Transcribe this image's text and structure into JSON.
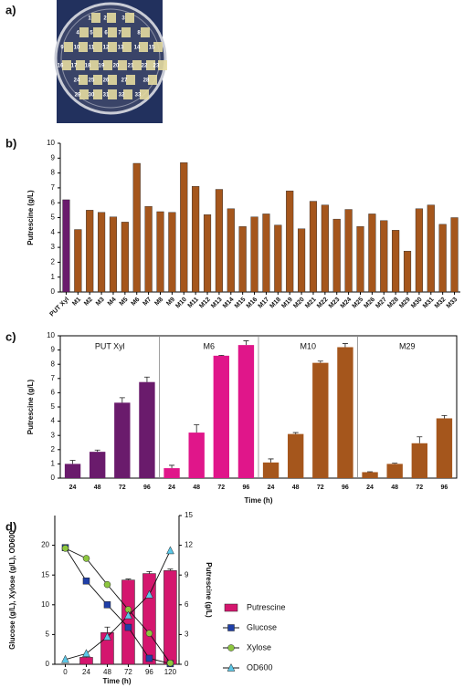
{
  "panel_labels": [
    "a)",
    "b)",
    "c)",
    "d)"
  ],
  "photo": {
    "labels": [
      "1",
      "2",
      "3",
      "4",
      "5",
      "6",
      "7",
      "8",
      "9",
      "10",
      "11",
      "12",
      "13",
      "14",
      "15",
      "16",
      "17",
      "18",
      "19",
      "20",
      "21",
      "22",
      "23",
      "24",
      "25",
      "26",
      "27",
      "28",
      "29",
      "30",
      "31",
      "32",
      "33"
    ]
  },
  "chart_data": [
    {
      "type": "bar",
      "ylabel": "Putrescine (g/L)",
      "categories": [
        "PUT Xyl",
        "M1",
        "M2",
        "M3",
        "M4",
        "M5",
        "M6",
        "M7",
        "M8",
        "M9",
        "M10",
        "M11",
        "M12",
        "M13",
        "M14",
        "M15",
        "M16",
        "M17",
        "M18",
        "M19",
        "M20",
        "M21",
        "M22",
        "M23",
        "M24",
        "M25",
        "M26",
        "M27",
        "M28",
        "M29",
        "M30",
        "M31",
        "M32",
        "M33"
      ],
      "values": [
        6.2,
        4.2,
        5.5,
        5.35,
        5.05,
        4.7,
        8.65,
        5.75,
        5.4,
        5.35,
        8.7,
        7.1,
        5.2,
        6.9,
        5.6,
        4.4,
        5.05,
        5.25,
        4.5,
        6.8,
        4.25,
        6.1,
        5.85,
        4.9,
        5.55,
        4.4,
        5.25,
        4.8,
        4.15,
        2.75,
        5.6,
        5.85,
        4.55,
        5.0
      ],
      "colors": [
        "#6a1b6c",
        "#a5561c",
        "#a5561c",
        "#a5561c",
        "#a5561c",
        "#a5561c",
        "#a5561c",
        "#a5561c",
        "#a5561c",
        "#a5561c",
        "#a5561c",
        "#a5561c",
        "#a5561c",
        "#a5561c",
        "#a5561c",
        "#a5561c",
        "#a5561c",
        "#a5561c",
        "#a5561c",
        "#a5561c",
        "#a5561c",
        "#a5561c",
        "#a5561c",
        "#a5561c",
        "#a5561c",
        "#a5561c",
        "#a5561c",
        "#a5561c",
        "#a5561c",
        "#a5561c",
        "#a5561c",
        "#a5561c",
        "#a5561c",
        "#a5561c"
      ],
      "ylim": [
        0,
        10
      ],
      "yticks": [
        0,
        1,
        2,
        3,
        4,
        5,
        6,
        7,
        8,
        9,
        10
      ]
    },
    {
      "type": "faceted_bar",
      "ylabel": "Putrescine (g/L)",
      "xlabel": "Time (h)",
      "groups": [
        {
          "name": "PUT Xyl",
          "color": "#6a1b6c",
          "categories": [
            "24",
            "48",
            "72",
            "96"
          ],
          "values": [
            1.0,
            1.85,
            5.3,
            6.75
          ],
          "errors": [
            0.25,
            0.12,
            0.35,
            0.35
          ]
        },
        {
          "name": "M6",
          "color": "#e0168a",
          "categories": [
            "24",
            "48",
            "72",
            "96"
          ],
          "values": [
            0.7,
            3.2,
            8.6,
            9.35
          ],
          "errors": [
            0.2,
            0.55,
            0.03,
            0.3
          ]
        },
        {
          "name": "M10",
          "color": "#a5561c",
          "categories": [
            "24",
            "48",
            "72",
            "96"
          ],
          "values": [
            1.1,
            3.1,
            8.1,
            9.2
          ],
          "errors": [
            0.25,
            0.1,
            0.12,
            0.25
          ]
        },
        {
          "name": "M29",
          "color": "#a5561c",
          "categories": [
            "24",
            "48",
            "72",
            "96"
          ],
          "values": [
            0.42,
            1.0,
            2.45,
            4.2
          ],
          "errors": [
            0.03,
            0.05,
            0.45,
            0.2
          ]
        }
      ],
      "ylim": [
        0,
        10
      ],
      "yticks": [
        0,
        1,
        2,
        3,
        4,
        5,
        6,
        7,
        8,
        9,
        10
      ]
    },
    {
      "type": "combo",
      "xlabel": "Time (h)",
      "ylabel": "Glucose (g/L), Xylose (g/L), OD600",
      "y2label": "Putrescine (g/L)",
      "xlim": [
        -12,
        130
      ],
      "xticks": [
        0,
        24,
        48,
        72,
        96,
        120
      ],
      "ylim": [
        0,
        25
      ],
      "yticks": [
        0,
        5,
        10,
        15,
        20
      ],
      "y2lim": [
        0,
        15
      ],
      "y2ticks": [
        0,
        3,
        6,
        9,
        12,
        15
      ],
      "series": [
        {
          "name": "Putrescine",
          "kind": "bar",
          "axis": "y2",
          "color": "#d4166e",
          "x": [
            24,
            48,
            72,
            96,
            120
          ],
          "values": [
            0.7,
            3.2,
            8.5,
            9.15,
            9.45
          ],
          "errors": [
            0.1,
            0.55,
            0.1,
            0.2,
            0.15
          ]
        },
        {
          "name": "Glucose",
          "kind": "line",
          "marker": "square",
          "color": "#1f3fa8",
          "x": [
            0,
            24,
            48,
            72,
            96,
            120
          ],
          "values": [
            19.6,
            14.0,
            10.0,
            6.2,
            1.0,
            0.1
          ]
        },
        {
          "name": "Xylose",
          "kind": "line",
          "marker": "circle",
          "color": "#8dc63f",
          "x": [
            0,
            24,
            48,
            72,
            96,
            120
          ],
          "values": [
            19.5,
            17.8,
            13.4,
            9.2,
            5.2,
            0.2
          ]
        },
        {
          "name": "OD600",
          "kind": "line",
          "marker": "triangle",
          "color": "#5bc8e8",
          "x": [
            0,
            24,
            48,
            72,
            96,
            120
          ],
          "values": [
            0.8,
            1.8,
            4.6,
            8.2,
            11.7,
            19.1
          ]
        }
      ]
    }
  ]
}
